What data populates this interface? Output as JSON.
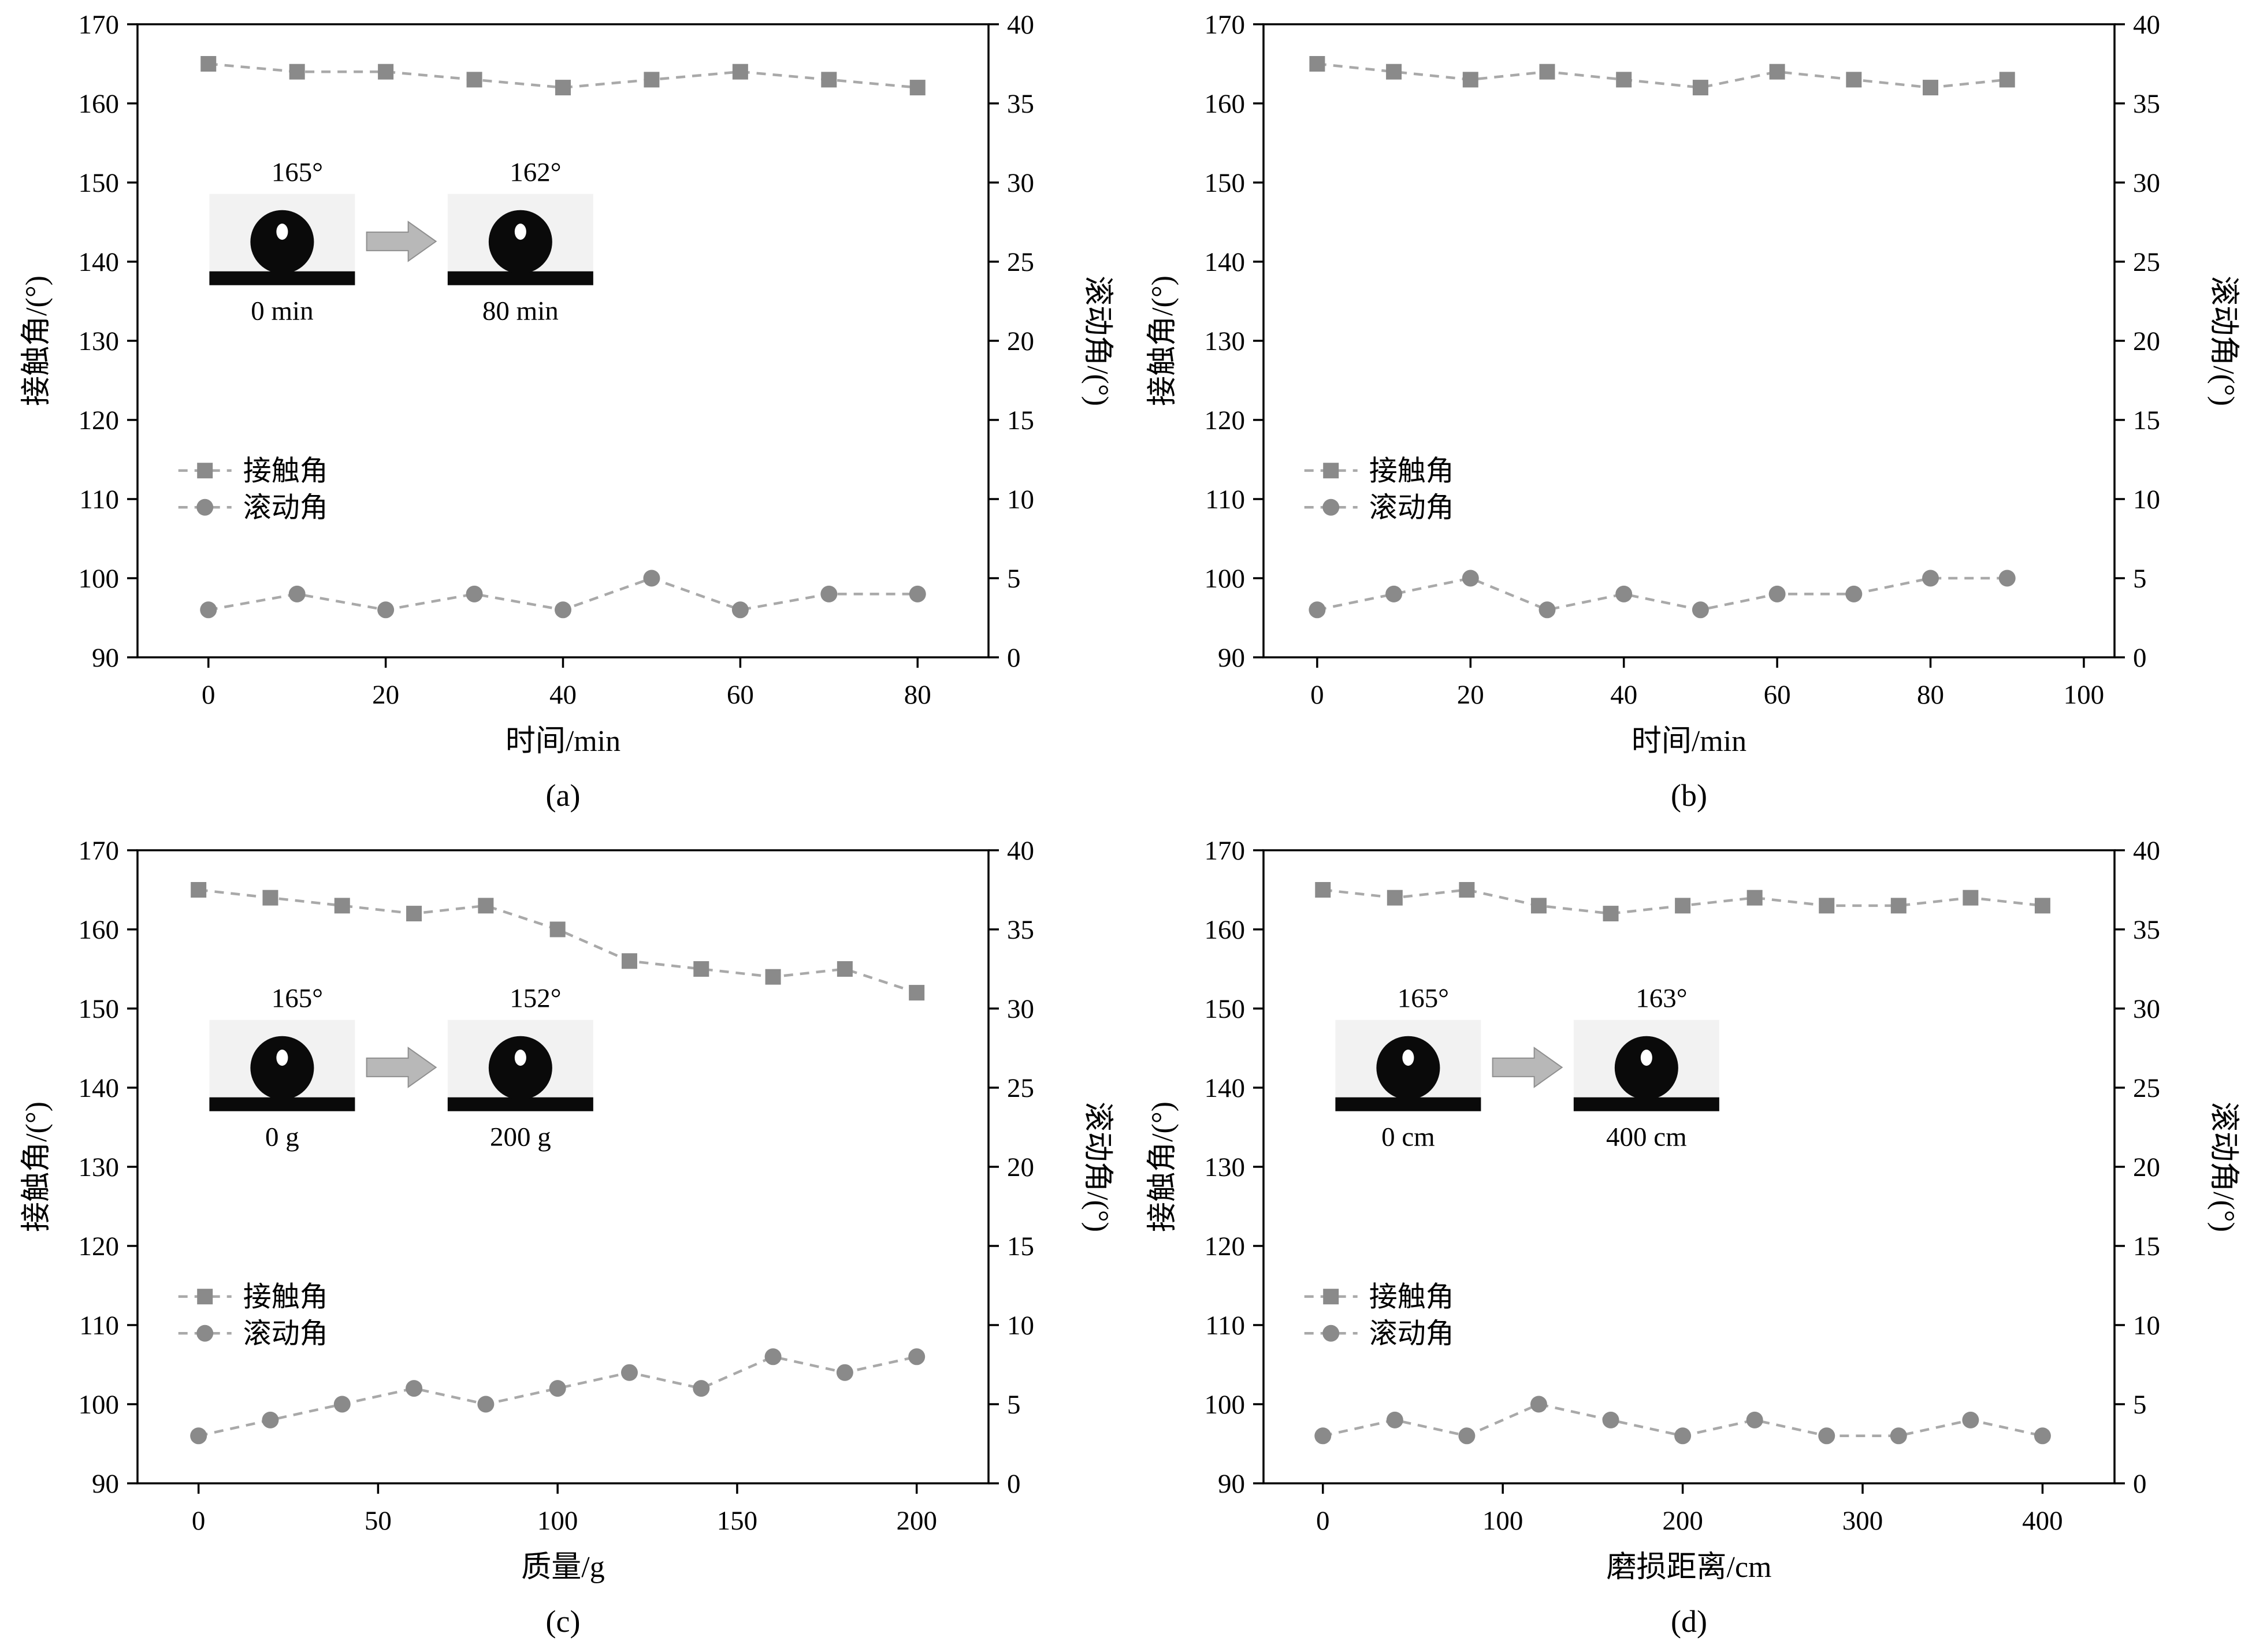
{
  "colors": {
    "marker": "#8a8a8a",
    "line": "#a9a9a9",
    "axis": "#000000",
    "arrow_fill": "#b8b8b8",
    "arrow_stroke": "#8f8f8f",
    "inset_bg": "#f2f2f2",
    "droplet": "#0a0a0a"
  },
  "chart_data": [
    {
      "id": "a",
      "type": "line",
      "panel_label": "(a)",
      "xlabel": "时间/min",
      "ylabel_left": "接触角/(°)",
      "ylabel_right": "滚动角/(°)",
      "xlim": [
        -8,
        88
      ],
      "xticks": [
        0,
        20,
        40,
        60,
        80
      ],
      "ylim_left": [
        90,
        170
      ],
      "yticks_left": [
        90,
        100,
        110,
        120,
        130,
        140,
        150,
        160,
        170
      ],
      "ylim_right": [
        0,
        40
      ],
      "yticks_right": [
        0,
        5,
        10,
        15,
        20,
        25,
        30,
        35,
        40
      ],
      "series": [
        {
          "name": "接触角",
          "axis": "left",
          "marker": "square",
          "x": [
            0,
            10,
            20,
            30,
            40,
            50,
            60,
            70,
            80
          ],
          "y": [
            165,
            164,
            164,
            163,
            162,
            163,
            164,
            163,
            162
          ]
        },
        {
          "name": "滚动角",
          "axis": "right",
          "marker": "circle",
          "x": [
            0,
            10,
            20,
            30,
            40,
            50,
            60,
            70,
            80
          ],
          "y": [
            3,
            4,
            3,
            4,
            3,
            5,
            3,
            4,
            4
          ]
        }
      ],
      "inset": {
        "before_angle": "165°",
        "after_angle": "162°",
        "before_caption": "0 min",
        "after_caption": "80 min"
      }
    },
    {
      "id": "b",
      "type": "line",
      "panel_label": "(b)",
      "xlabel": "时间/min",
      "ylabel_left": "接触角/(°)",
      "ylabel_right": "滚动角/(°)",
      "xlim": [
        -7,
        104
      ],
      "xticks": [
        0,
        20,
        40,
        60,
        80,
        100
      ],
      "ylim_left": [
        90,
        170
      ],
      "yticks_left": [
        90,
        100,
        110,
        120,
        130,
        140,
        150,
        160,
        170
      ],
      "ylim_right": [
        0,
        40
      ],
      "yticks_right": [
        0,
        5,
        10,
        15,
        20,
        25,
        30,
        35,
        40
      ],
      "series": [
        {
          "name": "接触角",
          "axis": "left",
          "marker": "square",
          "x": [
            0,
            10,
            20,
            30,
            40,
            50,
            60,
            70,
            80,
            90
          ],
          "y": [
            165,
            164,
            163,
            164,
            163,
            162,
            164,
            163,
            162,
            163
          ]
        },
        {
          "name": "滚动角",
          "axis": "right",
          "marker": "circle",
          "x": [
            0,
            10,
            20,
            30,
            40,
            50,
            60,
            70,
            80,
            90
          ],
          "y": [
            3,
            4,
            5,
            3,
            4,
            3,
            4,
            4,
            5,
            5
          ]
        }
      ],
      "inset": null
    },
    {
      "id": "c",
      "type": "line",
      "panel_label": "(c)",
      "xlabel": "质量/g",
      "ylabel_left": "接触角/(°)",
      "ylabel_right": "滚动角/(°)",
      "xlim": [
        -17,
        220
      ],
      "xticks": [
        0,
        50,
        100,
        150,
        200
      ],
      "ylim_left": [
        90,
        170
      ],
      "yticks_left": [
        90,
        100,
        110,
        120,
        130,
        140,
        150,
        160,
        170
      ],
      "ylim_right": [
        0,
        40
      ],
      "yticks_right": [
        0,
        5,
        10,
        15,
        20,
        25,
        30,
        35,
        40
      ],
      "series": [
        {
          "name": "接触角",
          "axis": "left",
          "marker": "square",
          "x": [
            0,
            20,
            40,
            60,
            80,
            100,
            120,
            140,
            160,
            180,
            200
          ],
          "y": [
            165,
            164,
            163,
            162,
            163,
            160,
            156,
            155,
            154,
            155,
            152
          ]
        },
        {
          "name": "滚动角",
          "axis": "right",
          "marker": "circle",
          "x": [
            0,
            20,
            40,
            60,
            80,
            100,
            120,
            140,
            160,
            180,
            200
          ],
          "y": [
            3,
            4,
            5,
            6,
            5,
            6,
            7,
            6,
            8,
            7,
            8
          ]
        }
      ],
      "inset": {
        "before_angle": "165°",
        "after_angle": "152°",
        "before_caption": "0 g",
        "after_caption": "200 g"
      }
    },
    {
      "id": "d",
      "type": "line",
      "panel_label": "(d)",
      "xlabel": "磨损距离/cm",
      "ylabel_left": "接触角/(°)",
      "ylabel_right": "滚动角/(°)",
      "xlim": [
        -33,
        440
      ],
      "xticks": [
        0,
        100,
        200,
        300,
        400
      ],
      "ylim_left": [
        90,
        170
      ],
      "yticks_left": [
        90,
        100,
        110,
        120,
        130,
        140,
        150,
        160,
        170
      ],
      "ylim_right": [
        0,
        40
      ],
      "yticks_right": [
        0,
        5,
        10,
        15,
        20,
        25,
        30,
        35,
        40
      ],
      "series": [
        {
          "name": "接触角",
          "axis": "left",
          "marker": "square",
          "x": [
            0,
            40,
            80,
            120,
            160,
            200,
            240,
            280,
            320,
            360,
            400
          ],
          "y": [
            165,
            164,
            165,
            163,
            162,
            163,
            164,
            163,
            163,
            164,
            163
          ]
        },
        {
          "name": "滚动角",
          "axis": "right",
          "marker": "circle",
          "x": [
            0,
            40,
            80,
            120,
            160,
            200,
            240,
            280,
            320,
            360,
            400
          ],
          "y": [
            3,
            4,
            3,
            5,
            4,
            3,
            4,
            3,
            3,
            4,
            3
          ]
        }
      ],
      "inset": {
        "before_angle": "165°",
        "after_angle": "163°",
        "before_caption": "0 cm",
        "after_caption": "400 cm"
      }
    }
  ]
}
